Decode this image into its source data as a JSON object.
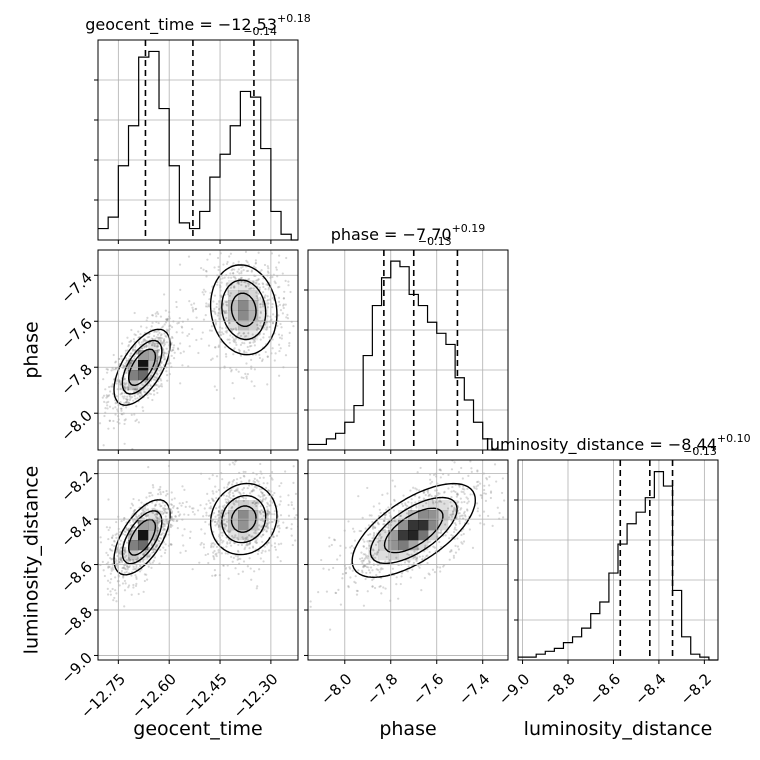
{
  "colors": {
    "histogram": "#000000",
    "grid": "#b0b0b0",
    "quantile_line": "#000000",
    "contour": "#000000",
    "density": "#000000",
    "scatter": "#8c8c8c"
  },
  "chart_data": {
    "type": "corner",
    "parameters": [
      "geocent_time",
      "phase",
      "luminosity_distance"
    ],
    "axis_labels": {
      "geocent_time": "geocent_time",
      "phase": "phase",
      "luminosity_distance": "luminosity_distance"
    },
    "ranges": {
      "geocent_time": [
        -12.81,
        -12.22
      ],
      "phase": [
        -8.16,
        -7.29
      ],
      "luminosity_distance": [
        -9.02,
        -8.14
      ]
    },
    "ticks": {
      "geocent_time": [
        {
          "v": -12.75,
          "label": "−12.75"
        },
        {
          "v": -12.6,
          "label": "−12.60"
        },
        {
          "v": -12.45,
          "label": "−12.45"
        },
        {
          "v": -12.3,
          "label": "−12.30"
        }
      ],
      "phase": [
        {
          "v": -8.0,
          "label": "−8.0"
        },
        {
          "v": -7.8,
          "label": "−7.8"
        },
        {
          "v": -7.6,
          "label": "−7.6"
        },
        {
          "v": -7.4,
          "label": "−7.4"
        }
      ],
      "luminosity_distance": [
        {
          "v": -9.0,
          "label": "−9.0"
        },
        {
          "v": -8.8,
          "label": "−8.8"
        },
        {
          "v": -8.6,
          "label": "−8.6"
        },
        {
          "v": -8.4,
          "label": "−8.4"
        },
        {
          "v": -8.2,
          "label": "−8.2"
        }
      ]
    },
    "diagonal": [
      {
        "param": "geocent_time",
        "title_main": "geocent_time = −12.53",
        "title_sup": "+0.18",
        "title_sub": "−0.14",
        "quantiles": [
          -12.67,
          -12.53,
          -12.35
        ],
        "hist_edges": [
          -12.81,
          -12.78,
          -12.75,
          -12.72,
          -12.69,
          -12.66,
          -12.63,
          -12.6,
          -12.57,
          -12.54,
          -12.51,
          -12.48,
          -12.45,
          -12.42,
          -12.39,
          -12.36,
          -12.33,
          -12.3,
          -12.27,
          -12.24,
          -12.22
        ],
        "hist_counts": [
          0.2,
          0.4,
          1.3,
          2.0,
          3.2,
          3.3,
          2.3,
          1.3,
          0.3,
          0.2,
          0.5,
          1.1,
          1.5,
          2.0,
          2.6,
          2.5,
          1.6,
          0.5,
          0.1,
          0.0
        ],
        "hist_max": 3.5
      },
      {
        "param": "phase",
        "title_main": "phase = −7.70",
        "title_sup": "+0.19",
        "title_sub": "−0.13",
        "quantiles": [
          -7.83,
          -7.7,
          -7.51
        ],
        "hist_edges": [
          -8.16,
          -8.12,
          -8.08,
          -8.04,
          -8.0,
          -7.96,
          -7.92,
          -7.88,
          -7.84,
          -7.8,
          -7.76,
          -7.72,
          -7.68,
          -7.64,
          -7.6,
          -7.56,
          -7.52,
          -7.48,
          -7.44,
          -7.4,
          -7.36,
          -7.29
        ],
        "hist_counts": [
          0.1,
          0.1,
          0.2,
          0.3,
          0.5,
          0.8,
          1.7,
          2.6,
          3.1,
          3.4,
          3.3,
          2.8,
          2.6,
          2.3,
          2.1,
          1.9,
          1.3,
          0.9,
          0.5,
          0.2,
          0.0
        ],
        "hist_max": 3.6
      },
      {
        "param": "luminosity_distance",
        "title_main": "luminosity_distance = −8.44",
        "title_sup": "+0.10",
        "title_sub": "−0.13",
        "quantiles": [
          -8.57,
          -8.44,
          -8.34
        ],
        "hist_edges": [
          -9.02,
          -8.98,
          -8.94,
          -8.9,
          -8.86,
          -8.82,
          -8.78,
          -8.74,
          -8.7,
          -8.66,
          -8.62,
          -8.58,
          -8.54,
          -8.5,
          -8.46,
          -8.42,
          -8.38,
          -8.34,
          -8.3,
          -8.26,
          -8.22,
          -8.18,
          -8.14
        ],
        "hist_counts": [
          0.1,
          0.1,
          0.2,
          0.3,
          0.4,
          0.6,
          0.8,
          1.1,
          1.6,
          2.0,
          3.0,
          4.0,
          4.7,
          5.1,
          5.6,
          6.5,
          6.0,
          2.4,
          0.8,
          0.2,
          0.1,
          0.0
        ],
        "hist_max": 6.9
      }
    ],
    "off_diagonal": [
      {
        "x": "geocent_time",
        "y": "phase",
        "modes": [
          {
            "cx": -12.68,
            "cy": -7.8,
            "sx": 0.04,
            "sy": 0.08,
            "rho": 0.6,
            "weight": 1.0
          },
          {
            "cx": -12.38,
            "cy": -7.55,
            "sx": 0.05,
            "sy": 0.1,
            "rho": -0.1,
            "weight": 0.8
          }
        ]
      },
      {
        "x": "geocent_time",
        "y": "luminosity_distance",
        "modes": [
          {
            "cx": -12.68,
            "cy": -8.48,
            "sx": 0.04,
            "sy": 0.08,
            "rho": 0.6,
            "weight": 1.0
          },
          {
            "cx": -12.38,
            "cy": -8.4,
            "sx": 0.05,
            "sy": 0.08,
            "rho": 0.1,
            "weight": 0.8
          }
        ]
      },
      {
        "x": "phase",
        "y": "luminosity_distance",
        "modes": [
          {
            "cx": -7.7,
            "cy": -8.45,
            "sx": 0.13,
            "sy": 0.1,
            "rho": 0.65,
            "weight": 1.0
          }
        ]
      }
    ]
  }
}
